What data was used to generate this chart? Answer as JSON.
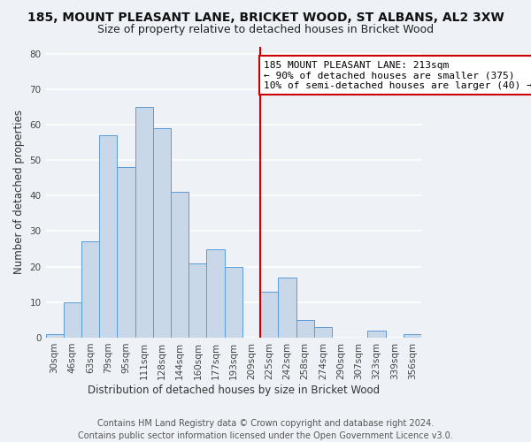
{
  "title": "185, MOUNT PLEASANT LANE, BRICKET WOOD, ST ALBANS, AL2 3XW",
  "subtitle": "Size of property relative to detached houses in Bricket Wood",
  "xlabel": "Distribution of detached houses by size in Bricket Wood",
  "ylabel": "Number of detached properties",
  "bin_labels": [
    "30sqm",
    "46sqm",
    "63sqm",
    "79sqm",
    "95sqm",
    "111sqm",
    "128sqm",
    "144sqm",
    "160sqm",
    "177sqm",
    "193sqm",
    "209sqm",
    "225sqm",
    "242sqm",
    "258sqm",
    "274sqm",
    "290sqm",
    "307sqm",
    "323sqm",
    "339sqm",
    "356sqm"
  ],
  "bar_heights": [
    1,
    10,
    27,
    57,
    48,
    65,
    59,
    41,
    21,
    25,
    20,
    0,
    13,
    17,
    5,
    3,
    0,
    0,
    2,
    0,
    1
  ],
  "bar_color": "#c8d8e8",
  "bar_edge_color": "#5b9bd5",
  "vline_x_index": 11.5,
  "vline_color": "#cc0000",
  "annotation_line1": "185 MOUNT PLEASANT LANE: 213sqm",
  "annotation_line2": "← 90% of detached houses are smaller (375)",
  "annotation_line3": "10% of semi-detached houses are larger (40) →",
  "annotation_box_edge_color": "#cc0000",
  "ylim": [
    0,
    82
  ],
  "yticks": [
    0,
    10,
    20,
    30,
    40,
    50,
    60,
    70,
    80
  ],
  "footer_text": "Contains HM Land Registry data © Crown copyright and database right 2024.\nContains public sector information licensed under the Open Government Licence v3.0.",
  "bg_color": "#eef2f6",
  "grid_color": "#ffffff",
  "title_fontsize": 10,
  "subtitle_fontsize": 9,
  "axis_label_fontsize": 8.5,
  "tick_fontsize": 7.5,
  "annotation_fontsize": 8,
  "footer_fontsize": 7
}
